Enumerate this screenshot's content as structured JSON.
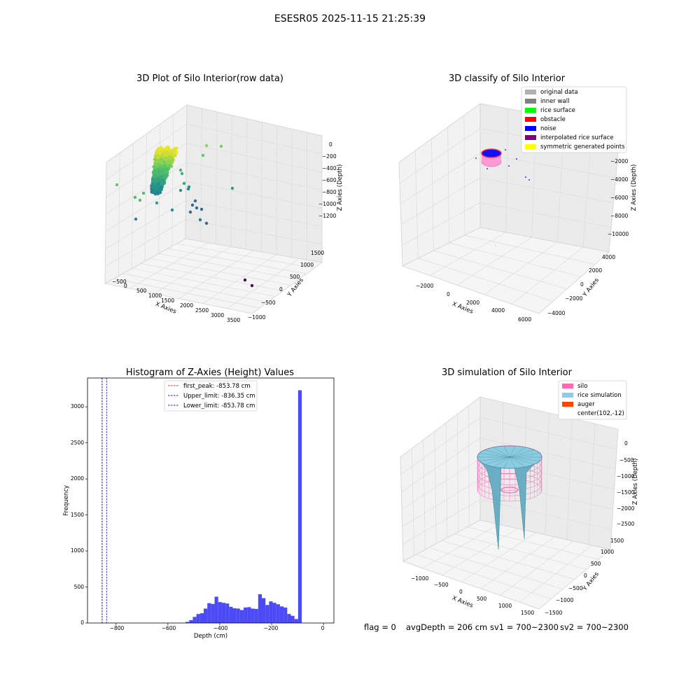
{
  "suptitle": "ESESR05 2025-11-15 21:25:39",
  "colors": {
    "hist_bar": "#4b4bf5",
    "first_peak": "#e03030",
    "limits": "#2020c0",
    "silo": "#ff69b4",
    "rice": "#87ceeb",
    "auger": "#ff4500"
  },
  "raw_plot": {
    "title": "3D Plot of Silo Interior(row data)",
    "xlabel": "X Axies",
    "ylabel": "Y Axies",
    "zlabel": "Z Axies (Depth)",
    "x_ticks": [
      "−500",
      "0",
      "500",
      "1000",
      "1500",
      "2000",
      "2500",
      "3000",
      "3500"
    ],
    "y_ticks": [
      "−1000",
      "−500",
      "0",
      "500",
      "1000",
      "1500"
    ],
    "z_ticks": [
      "0",
      "−200",
      "−400",
      "−600",
      "−800",
      "−1000",
      "−1200"
    ]
  },
  "classify_plot": {
    "title": "3D classify of Silo Interior",
    "xlabel": "X Axies",
    "ylabel": "Y Axies",
    "zlabel": "Z Axies (Depth)",
    "x_ticks": [
      "−2000",
      "0",
      "2000",
      "4000",
      "6000"
    ],
    "y_ticks": [
      "−4000",
      "−2000",
      "0",
      "2000",
      "4000"
    ],
    "z_ticks": [
      "−2000",
      "−4000",
      "−6000",
      "−8000",
      "−10000"
    ],
    "legend": [
      {
        "label": "original data",
        "color": "#b0b0b0"
      },
      {
        "label": "inner wall",
        "color": "#808080"
      },
      {
        "label": "rice surface",
        "color": "#00ff00"
      },
      {
        "label": "obstacle",
        "color": "#ff0000"
      },
      {
        "label": "noise",
        "color": "#0000ff"
      },
      {
        "label": "interpolated rice surface",
        "color": "#800080"
      },
      {
        "label": "symmetric generated points",
        "color": "#ffff00"
      }
    ]
  },
  "histogram": {
    "title": "Histogram of Z-Axies (Height) Values",
    "xlabel": "Depth (cm)",
    "ylabel": "Frequency",
    "x_ticks": [
      "−800",
      "−600",
      "−400",
      "−200",
      "0"
    ],
    "y_ticks": [
      "0",
      "500",
      "1000",
      "1500",
      "2000",
      "2500",
      "3000"
    ],
    "legend": [
      {
        "label": "first_peak: -853.78 cm",
        "style": "red"
      },
      {
        "label": "Upper_limit: -836.35 cm",
        "style": "blue"
      },
      {
        "label": "Lower_limit: -853.78 cm",
        "style": "blue"
      }
    ]
  },
  "simulation_plot": {
    "title": "3D simulation of Silo Interior",
    "xlabel": "X Axies",
    "ylabel": "Y Axies",
    "zlabel": "Z Axies (Depth)",
    "x_ticks": [
      "−1000",
      "−500",
      "0",
      "500",
      "1000",
      "1500"
    ],
    "y_ticks": [
      "−1500",
      "−1000",
      "−500",
      "0",
      "500",
      "1000",
      "1500"
    ],
    "z_ticks": [
      "0",
      "−500",
      "−1000",
      "−1500",
      "−2000",
      "−2500"
    ],
    "legend": [
      {
        "label": "silo",
        "color": "#ff69b4"
      },
      {
        "label": "rice simulation",
        "color": "#87ceeb"
      },
      {
        "label": "auger",
        "color": "#ff4500"
      },
      {
        "label": "center(102,-12)",
        "color": ""
      }
    ]
  },
  "status": {
    "flag": "flag = 0",
    "avg_depth": "avgDepth = 206 cm",
    "sv1": "sv1 = 700~2300",
    "sv2": "sv2 = 700~2300"
  },
  "chart_data": [
    {
      "type": "scatter",
      "title": "3D Plot of Silo Interior(row data)",
      "xlabel": "X Axies",
      "ylabel": "Y Axies",
      "zlabel": "Z Axies (Depth)",
      "xlim": [
        -600,
        3600
      ],
      "ylim": [
        -1100,
        1700
      ],
      "zlim": [
        -1300,
        50
      ],
      "grid": true
    },
    {
      "type": "scatter",
      "title": "3D classify of Silo Interior",
      "xlabel": "X Axies",
      "ylabel": "Y Axies",
      "zlabel": "Z Axies (Depth)",
      "xlim": [
        -3000,
        7000
      ],
      "ylim": [
        -4500,
        4500
      ],
      "zlim": [
        -10500,
        0
      ],
      "legend_position": "top-right",
      "series": [
        {
          "name": "original data"
        },
        {
          "name": "inner wall"
        },
        {
          "name": "rice surface"
        },
        {
          "name": "obstacle"
        },
        {
          "name": "noise"
        },
        {
          "name": "interpolated rice surface"
        },
        {
          "name": "symmetric generated points"
        }
      ]
    },
    {
      "type": "bar",
      "title": "Histogram of Z-Axies (Height) Values",
      "xlabel": "Depth (cm)",
      "ylabel": "Frequency",
      "xlim": [
        -910,
        40
      ],
      "ylim": [
        0,
        3400
      ],
      "bin_width": 14,
      "bin_left": [
        -532,
        -518,
        -504,
        -490,
        -476,
        -462,
        -448,
        -434,
        -420,
        -406,
        -392,
        -378,
        -364,
        -350,
        -336,
        -322,
        -308,
        -294,
        -280,
        -266,
        -252,
        -238,
        -224,
        -210,
        -196,
        -182,
        -168,
        -154,
        -140,
        -126,
        -112,
        -98,
        -84,
        -70,
        -56,
        -42,
        -28,
        -14
      ],
      "values": [
        15,
        40,
        85,
        125,
        135,
        200,
        275,
        265,
        365,
        290,
        280,
        270,
        225,
        205,
        200,
        180,
        215,
        220,
        200,
        195,
        400,
        345,
        250,
        300,
        280,
        260,
        230,
        215,
        125,
        100,
        55,
        3230,
        0,
        0,
        0,
        0,
        0,
        0
      ],
      "vlines": [
        {
          "name": "first_peak",
          "x": -853.78,
          "color": "red"
        },
        {
          "name": "Upper_limit",
          "x": -836.35,
          "color": "blue"
        },
        {
          "name": "Lower_limit",
          "x": -853.78,
          "color": "blue"
        }
      ],
      "legend_position": "top-center"
    },
    {
      "type": "surface",
      "title": "3D simulation of Silo Interior",
      "xlabel": "X Axies",
      "ylabel": "Y Axies",
      "zlabel": "Z Axies (Depth)",
      "xlim": [
        -1300,
        1700
      ],
      "ylim": [
        -1700,
        1700
      ],
      "zlim": [
        -2700,
        200
      ],
      "legend_position": "top-right",
      "series": [
        {
          "name": "silo"
        },
        {
          "name": "rice simulation"
        },
        {
          "name": "auger"
        },
        {
          "name": "center(102,-12)"
        }
      ]
    }
  ]
}
